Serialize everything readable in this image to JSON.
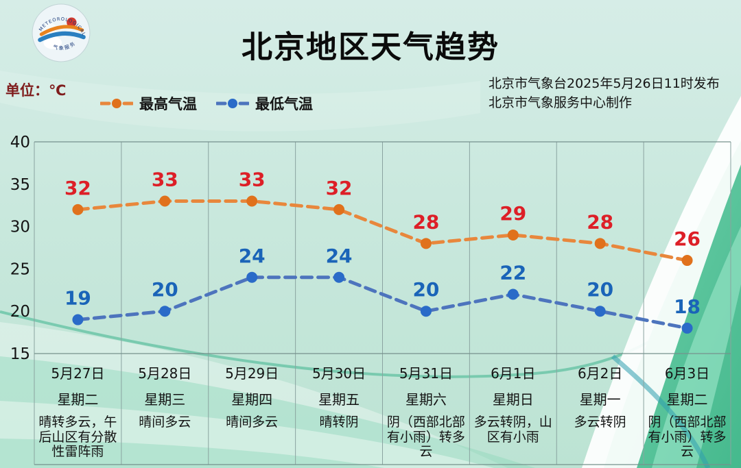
{
  "header": {
    "title": "北京地区天气趋势",
    "unit_label": "单位：℃",
    "issuer_line1": "北京市气象台2025年5月26日11时发布",
    "issuer_line2": "北京市气象服务中心制作",
    "logo_text_top": "METEOROLOGICAL SERVICE",
    "logo_text_bottom": "气象服务"
  },
  "legend": [
    {
      "label": "最高气温",
      "line_color": "#e8873c",
      "marker_color": "#e0711c"
    },
    {
      "label": "最低气温",
      "line_color": "#4d74bd",
      "marker_color": "#2a6bc8"
    }
  ],
  "colors": {
    "high_label": "#dd1f27",
    "low_label": "#1a64b8",
    "grid_line": "#8aa3a0",
    "border_line": "#76918c",
    "text": "#141414",
    "bg_mint_top": "#d6ede7",
    "bg_green_corner": "#45b98d"
  },
  "chart_data": {
    "type": "line",
    "title": "北京地区天气趋势",
    "ylabel": "单位：℃",
    "ylim": [
      15,
      40
    ],
    "yticks": [
      40,
      35,
      30,
      25,
      20,
      15
    ],
    "grid": "vertical-only",
    "legend_position": "top",
    "categories": [
      "5月27日",
      "5月28日",
      "5月29日",
      "5月30日",
      "5月31日",
      "6月1日",
      "6月2日",
      "6月3日"
    ],
    "weekdays": [
      "星期二",
      "星期三",
      "星期四",
      "星期五",
      "星期六",
      "星期日",
      "星期一",
      "星期二"
    ],
    "weather": [
      "晴转多云，午后山区有分散性雷阵雨",
      "晴间多云",
      "晴间多云",
      "晴转阴",
      "阴（西部北部有小雨）转多云",
      "多云转阴，山区有小雨",
      "多云转阴",
      "阴（西部北部有小雨）转多云"
    ],
    "series": [
      {
        "name": "最高气温",
        "values": [
          32,
          33,
          33,
          32,
          28,
          29,
          28,
          26
        ],
        "line_color": "#e8873c",
        "marker_color": "#e0711c",
        "label_color": "#dd1f27"
      },
      {
        "name": "最低气温",
        "values": [
          19,
          20,
          24,
          24,
          20,
          22,
          20,
          18
        ],
        "line_color": "#4d74bd",
        "marker_color": "#2a6bc8",
        "label_color": "#1a64b8"
      }
    ]
  }
}
